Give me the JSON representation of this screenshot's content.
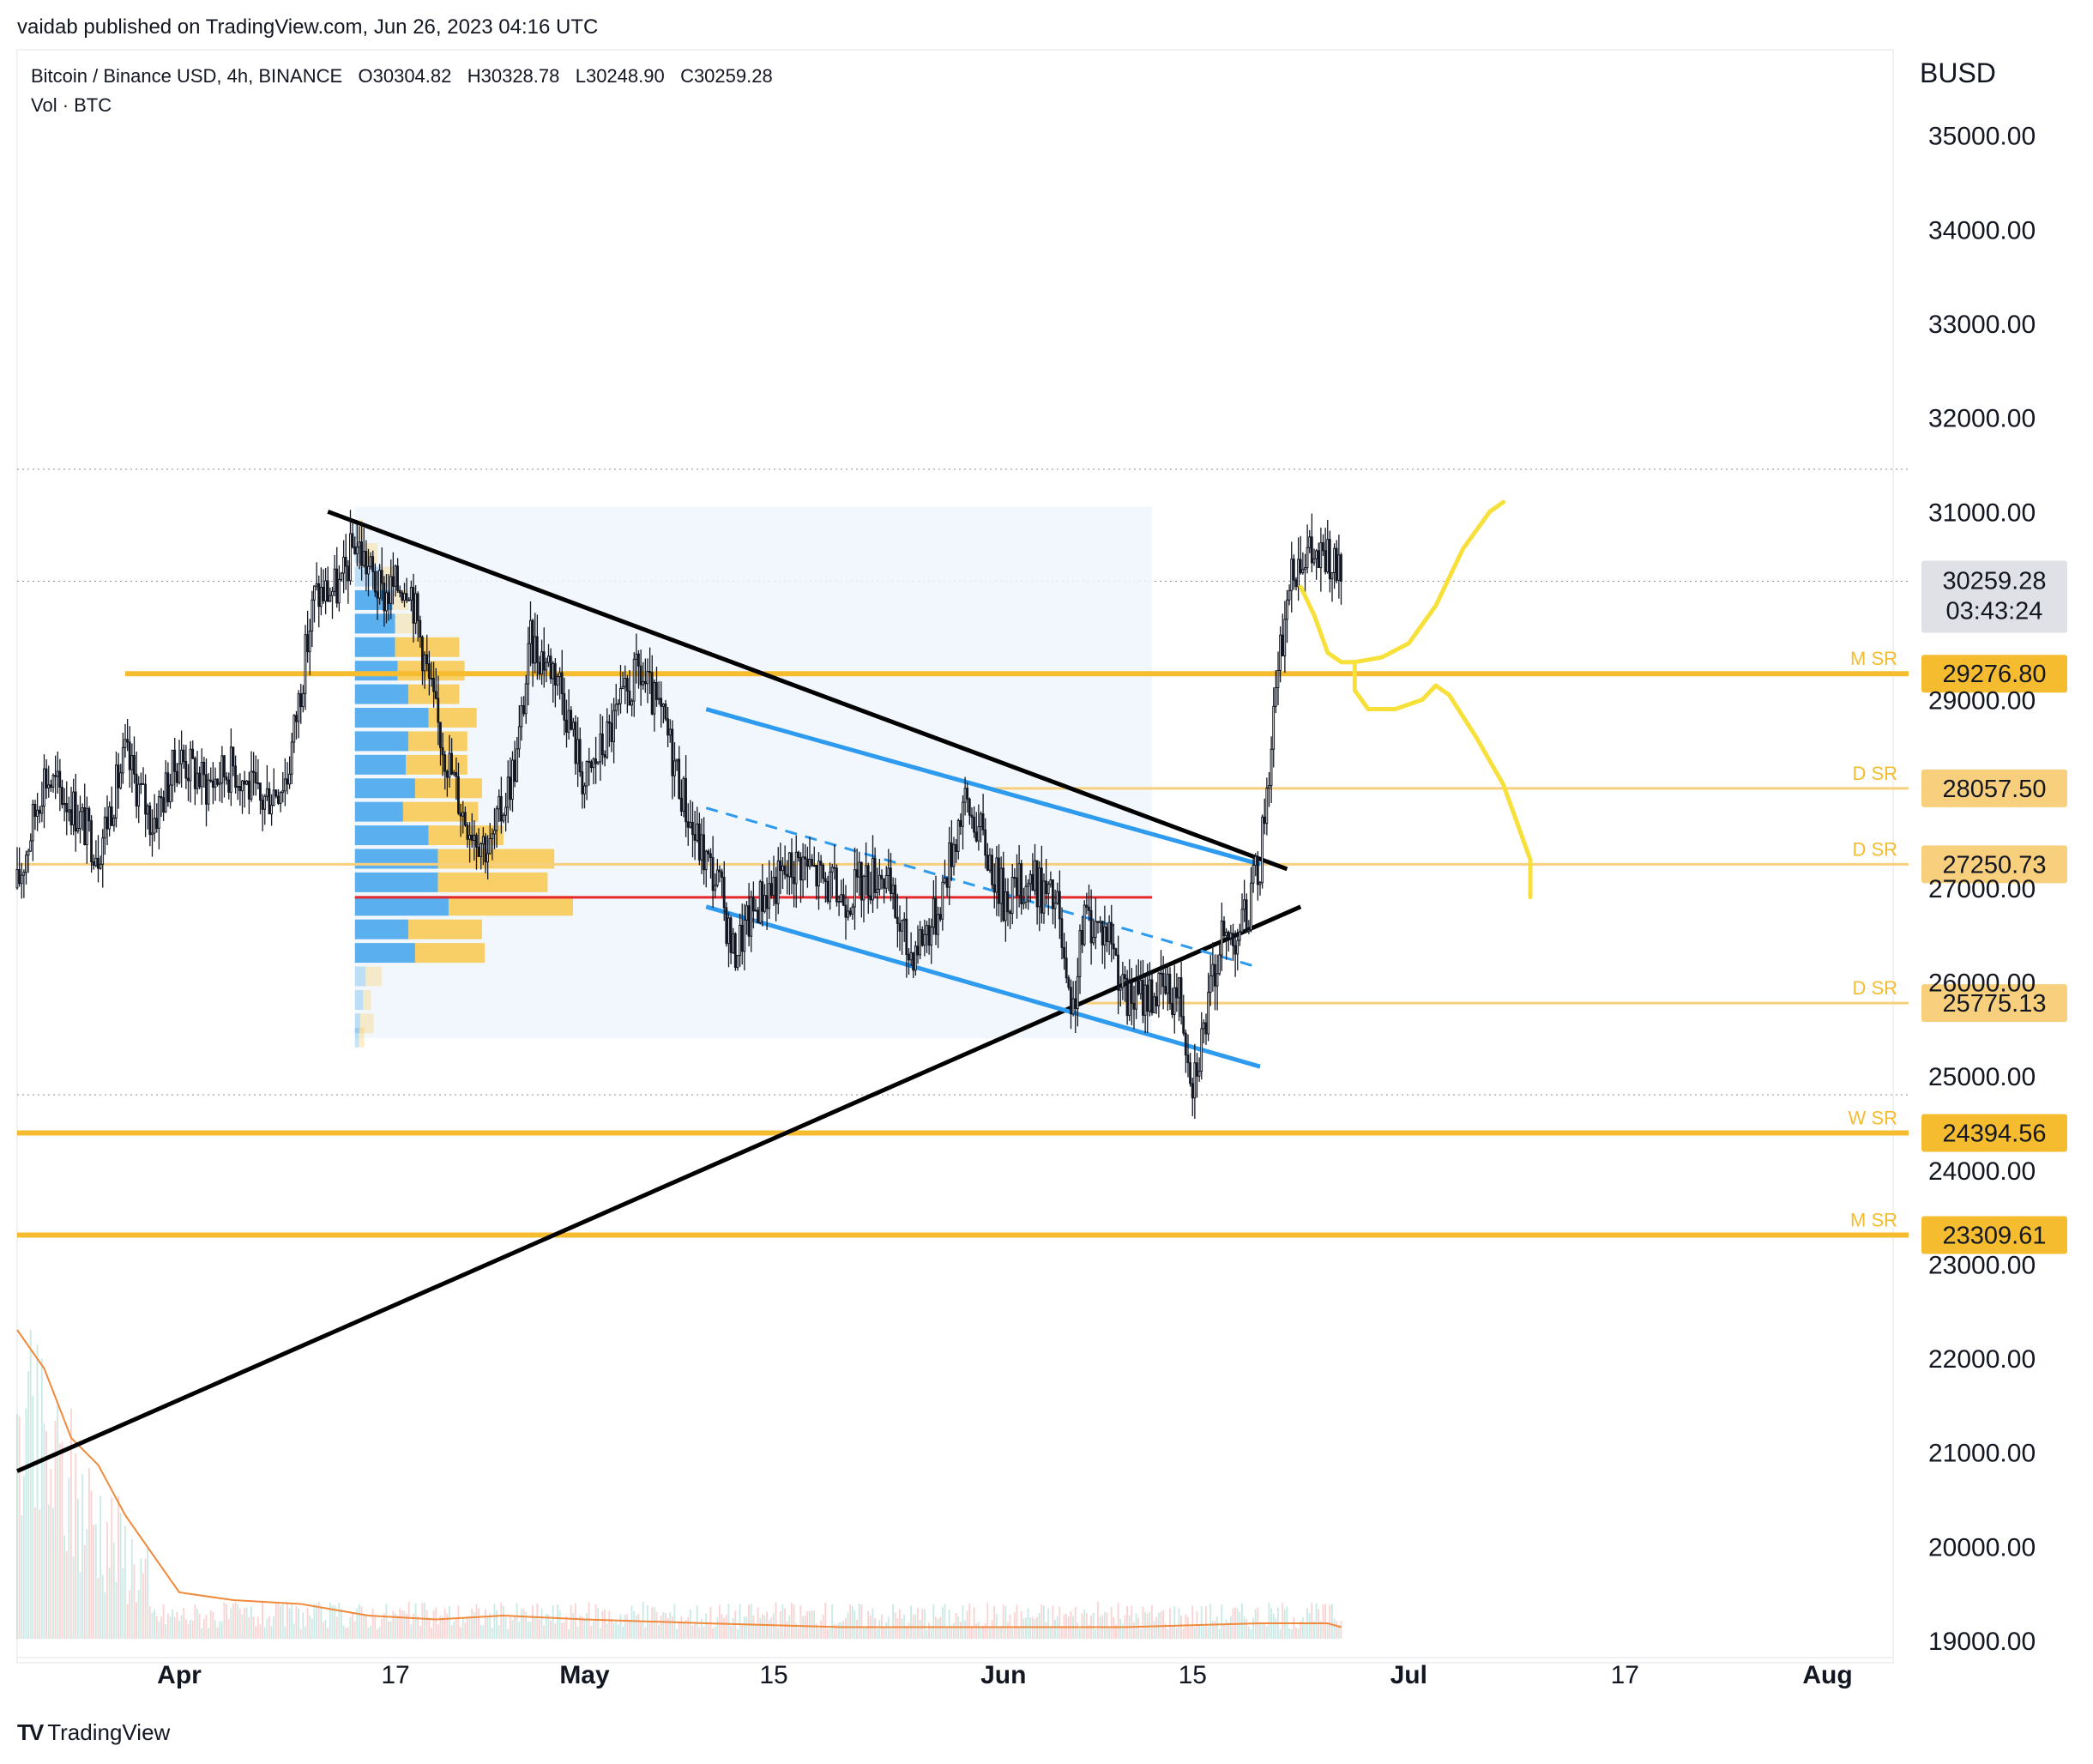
{
  "header": {
    "credit": "vaidab published on TradingView.com, Jun 26, 2023 04:16 UTC"
  },
  "legend": {
    "symbol_line": "Bitcoin / Binance USD, 4h, BINANCE",
    "open": "O30304.82",
    "high": "H30328.78",
    "low": "L30248.90",
    "close": "C30259.28",
    "volume_line": "Vol · BTC"
  },
  "footer": {
    "brand": "TradingView"
  },
  "colors": {
    "candle": "#131722",
    "level_strong": "#f5bc30",
    "level_light": "#f8cf7d",
    "channel": "#2e9bee",
    "trendline": "#000000",
    "poc": "#e5282c",
    "drawing": "#f8e03a",
    "vp_up": "#5ab0ef",
    "vp_down": "#f8cf66",
    "volume_ma": "#f08a3c",
    "current_price_tag": "#dfe1e6"
  },
  "chart_data": {
    "type": "candlestick",
    "symbol": "Bitcoin / Binance USD",
    "timeframe": "4h",
    "exchange": "BINANCE",
    "currency": "BUSD",
    "ohlc_last": {
      "open": 30304.82,
      "high": 30328.78,
      "low": 30248.9,
      "close": 30259.28
    },
    "y_range": [
      19000,
      35800
    ],
    "y_ticks": [
      19000,
      20000,
      21000,
      22000,
      23000,
      24000,
      25000,
      26000,
      27000,
      28000,
      29000,
      30000,
      31000,
      32000,
      33000,
      34000,
      35000
    ],
    "y_tick_labels": [
      "19000.00",
      "20000.00",
      "21000.00",
      "22000.00",
      "23000.00",
      "24000.00",
      "25000.00",
      "26000.00",
      "27000.00",
      "28000.00",
      "29000.00",
      "30000.00",
      "31000.00",
      "32000.00",
      "33000.00",
      "34000.00",
      "35000.00"
    ],
    "x_range": [
      "2023-03-20",
      "2023-08-07"
    ],
    "x_ticks": [
      {
        "date": "2023-04-01",
        "label": "Apr",
        "bold": true
      },
      {
        "date": "2023-04-17",
        "label": "17",
        "bold": false
      },
      {
        "date": "2023-05-01",
        "label": "May",
        "bold": true
      },
      {
        "date": "2023-05-15",
        "label": "15",
        "bold": false
      },
      {
        "date": "2023-06-01",
        "label": "Jun",
        "bold": true
      },
      {
        "date": "2023-06-15",
        "label": "15",
        "bold": false
      },
      {
        "date": "2023-07-01",
        "label": "Jul",
        "bold": true
      },
      {
        "date": "2023-07-17",
        "label": "17",
        "bold": false
      },
      {
        "date": "2023-08-01",
        "label": "Aug",
        "bold": true
      }
    ],
    "price_path": [
      [
        "2023-03-20",
        27000
      ],
      [
        "2023-03-22",
        28200
      ],
      [
        "2023-03-24",
        27900
      ],
      [
        "2023-03-26",
        27400
      ],
      [
        "2023-03-28",
        28400
      ],
      [
        "2023-03-30",
        27700
      ],
      [
        "2023-04-01",
        28400
      ],
      [
        "2023-04-03",
        28100
      ],
      [
        "2023-04-05",
        28300
      ],
      [
        "2023-04-07",
        27900
      ],
      [
        "2023-04-09",
        28200
      ],
      [
        "2023-04-11",
        30100
      ],
      [
        "2023-04-13",
        30200
      ],
      [
        "2023-04-14",
        30700
      ],
      [
        "2023-04-16",
        30100
      ],
      [
        "2023-04-18",
        30300
      ],
      [
        "2023-04-20",
        28800
      ],
      [
        "2023-04-22",
        27800
      ],
      [
        "2023-04-24",
        27400
      ],
      [
        "2023-04-26",
        28400
      ],
      [
        "2023-04-27",
        29600
      ],
      [
        "2023-04-29",
        29300
      ],
      [
        "2023-05-01",
        28100
      ],
      [
        "2023-05-03",
        28700
      ],
      [
        "2023-05-05",
        29300
      ],
      [
        "2023-05-07",
        28700
      ],
      [
        "2023-05-09",
        27600
      ],
      [
        "2023-05-11",
        27000
      ],
      [
        "2023-05-12",
        26300
      ],
      [
        "2023-05-14",
        26900
      ],
      [
        "2023-05-17",
        27300
      ],
      [
        "2023-05-20",
        26900
      ],
      [
        "2023-05-23",
        27200
      ],
      [
        "2023-05-25",
        26300
      ],
      [
        "2023-05-27",
        26700
      ],
      [
        "2023-05-29",
        27900
      ],
      [
        "2023-05-30",
        27700
      ],
      [
        "2023-06-01",
        26900
      ],
      [
        "2023-06-03",
        27100
      ],
      [
        "2023-06-05",
        26800
      ],
      [
        "2023-06-06",
        25500
      ],
      [
        "2023-06-07",
        26700
      ],
      [
        "2023-06-09",
        26500
      ],
      [
        "2023-06-10",
        25800
      ],
      [
        "2023-06-12",
        25900
      ],
      [
        "2023-06-14",
        25900
      ],
      [
        "2023-06-15",
        25000
      ],
      [
        "2023-06-16",
        25600
      ],
      [
        "2023-06-17",
        26400
      ],
      [
        "2023-06-18",
        26500
      ],
      [
        "2023-06-19",
        26700
      ],
      [
        "2023-06-20",
        27300
      ],
      [
        "2023-06-21",
        28800
      ],
      [
        "2023-06-22",
        30100
      ],
      [
        "2023-06-23",
        30600
      ],
      [
        "2023-06-24",
        30500
      ],
      [
        "2023-06-25",
        30500
      ],
      [
        "2023-06-26",
        30259
      ]
    ],
    "price_levels": [
      {
        "value": 29276.8,
        "label": "29276.80",
        "tag": "M SR",
        "style": "strong",
        "from": "2023-03-28"
      },
      {
        "value": 28057.5,
        "label": "28057.50",
        "tag": "D SR",
        "style": "light",
        "from": "2023-05-31"
      },
      {
        "value": 27250.73,
        "label": "27250.73",
        "tag": "D SR",
        "style": "light",
        "from": "2023-03-20"
      },
      {
        "value": 25775.13,
        "label": "25775.13",
        "tag": "D SR",
        "style": "light",
        "from": "2023-06-06"
      },
      {
        "value": 24394.56,
        "label": "24394.56",
        "tag": "W SR",
        "style": "strong",
        "from": "2023-03-20"
      },
      {
        "value": 23309.61,
        "label": "23309.61",
        "tag": "M SR",
        "style": "strong",
        "from": "2023-03-20"
      }
    ],
    "current_price": {
      "value": 30259.28,
      "label": "30259.28",
      "countdown": "03:43:24"
    },
    "dotted_lines": [
      31450,
      30260,
      24800
    ],
    "trendlines": [
      {
        "from": [
          "2023-04-12",
          31000
        ],
        "to": [
          "2023-06-22",
          27200
        ]
      },
      {
        "from": [
          "2023-03-20",
          20800
        ],
        "to": [
          "2023-06-23",
          26800
        ]
      }
    ],
    "channel": {
      "upper": {
        "from": [
          "2023-05-10",
          28900
        ],
        "to": [
          "2023-06-20",
          27250
        ]
      },
      "lower": {
        "from": [
          "2023-05-10",
          26800
        ],
        "to": [
          "2023-06-20",
          25100
        ]
      },
      "mid": {
        "from": [
          "2023-05-10",
          27850
        ],
        "to": [
          "2023-06-20",
          26150
        ]
      }
    },
    "volume_profile": {
      "range_x": [
        "2023-04-14",
        "2023-06-12"
      ],
      "range_y": [
        25400,
        31050
      ],
      "poc": 26900,
      "rows": [
        {
          "price": 30800,
          "up": 0.02,
          "down": 0.04
        },
        {
          "price": 30550,
          "up": 0.05,
          "down": 0.12
        },
        {
          "price": 30300,
          "up": 0.2,
          "down": 0.1
        },
        {
          "price": 30050,
          "up": 0.28,
          "down": 0.12
        },
        {
          "price": 29800,
          "up": 0.3,
          "down": 0.18
        },
        {
          "price": 29550,
          "up": 0.3,
          "down": 0.48
        },
        {
          "price": 29300,
          "up": 0.32,
          "down": 0.5
        },
        {
          "price": 29050,
          "up": 0.4,
          "down": 0.38
        },
        {
          "price": 28800,
          "up": 0.55,
          "down": 0.36
        },
        {
          "price": 28550,
          "up": 0.4,
          "down": 0.44
        },
        {
          "price": 28300,
          "up": 0.38,
          "down": 0.46
        },
        {
          "price": 28050,
          "up": 0.45,
          "down": 0.5
        },
        {
          "price": 27800,
          "up": 0.36,
          "down": 0.56
        },
        {
          "price": 27550,
          "up": 0.55,
          "down": 0.56
        },
        {
          "price": 27300,
          "up": 0.62,
          "down": 0.87
        },
        {
          "price": 27050,
          "up": 0.62,
          "down": 0.82
        },
        {
          "price": 26800,
          "up": 0.7,
          "down": 0.93
        },
        {
          "price": 26550,
          "up": 0.4,
          "down": 0.55
        },
        {
          "price": 26300,
          "up": 0.45,
          "down": 0.52
        },
        {
          "price": 26050,
          "up": 0.08,
          "down": 0.12
        },
        {
          "price": 25800,
          "up": 0.06,
          "down": 0.06
        },
        {
          "price": 25550,
          "up": 0.04,
          "down": 0.1
        },
        {
          "price": 25400,
          "up": 0.03,
          "down": 0.04
        }
      ]
    },
    "projection_path": [
      [
        "2023-06-23",
        30200
      ],
      [
        "2023-06-24",
        29900
      ],
      [
        "2023-06-25",
        29500
      ],
      [
        "2023-06-26",
        29400
      ],
      [
        "2023-06-27",
        29400
      ],
      [
        "2023-06-29",
        29450
      ],
      [
        "2023-07-01",
        29600
      ],
      [
        "2023-07-03",
        30000
      ],
      [
        "2023-07-05",
        30600
      ],
      [
        "2023-07-07",
        31000
      ],
      [
        "2023-07-08",
        31100
      ]
    ],
    "projection_path_2": [
      [
        "2023-06-27",
        29400
      ],
      [
        "2023-06-27",
        29100
      ],
      [
        "2023-06-28",
        28900
      ],
      [
        "2023-06-30",
        28900
      ],
      [
        "2023-07-02",
        29000
      ],
      [
        "2023-07-03",
        29150
      ],
      [
        "2023-07-04",
        29050
      ],
      [
        "2023-07-06",
        28600
      ],
      [
        "2023-07-08",
        28100
      ],
      [
        "2023-07-09",
        27700
      ],
      [
        "2023-07-10",
        27300
      ],
      [
        "2023-07-10",
        26900
      ]
    ],
    "volume": {
      "ma_path": [
        [
          "2023-03-20",
          0.8
        ],
        [
          "2023-03-22",
          0.7
        ],
        [
          "2023-03-24",
          0.52
        ],
        [
          "2023-03-26",
          0.45
        ],
        [
          "2023-03-28",
          0.32
        ],
        [
          "2023-03-30",
          0.22
        ],
        [
          "2023-04-01",
          0.12
        ],
        [
          "2023-04-05",
          0.1
        ],
        [
          "2023-04-10",
          0.09
        ],
        [
          "2023-04-15",
          0.06
        ],
        [
          "2023-04-20",
          0.05
        ],
        [
          "2023-04-25",
          0.06
        ],
        [
          "2023-05-01",
          0.05
        ],
        [
          "2023-05-10",
          0.04
        ],
        [
          "2023-05-20",
          0.03
        ],
        [
          "2023-06-01",
          0.03
        ],
        [
          "2023-06-10",
          0.03
        ],
        [
          "2023-06-20",
          0.04
        ],
        [
          "2023-06-25",
          0.04
        ],
        [
          "2023-06-26",
          0.03
        ]
      ]
    }
  }
}
